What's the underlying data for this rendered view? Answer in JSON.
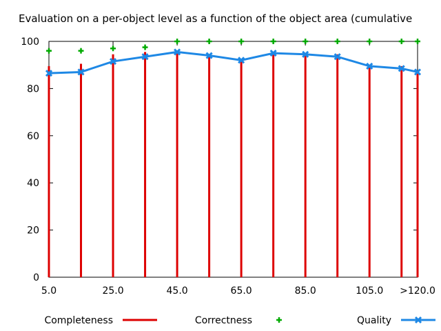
{
  "chart_data": {
    "type": "line",
    "title": "Evaluation on a per-object level as a function of the object area (cumulative",
    "x": [
      5,
      15,
      25,
      35,
      45,
      55,
      65,
      75,
      85,
      95,
      105,
      115,
      120
    ],
    "xticks": [
      {
        "value": 5,
        "label": "5.0"
      },
      {
        "value": 25,
        "label": "25.0"
      },
      {
        "value": 45,
        "label": "45.0"
      },
      {
        "value": 65,
        "label": "65.0"
      },
      {
        "value": 85,
        "label": "85.0"
      },
      {
        "value": 105,
        "label": "105.0"
      },
      {
        "value": 120,
        "label": ">120.0"
      }
    ],
    "yticks": [
      0,
      20,
      40,
      60,
      80,
      100
    ],
    "xlim": [
      5,
      120
    ],
    "ylim": [
      0,
      100
    ],
    "grid": false,
    "legend_position": "bottom",
    "series": [
      {
        "name": "Completeness",
        "style": "impulses",
        "color": "#dd0000",
        "values": [
          89.5,
          90.5,
          94.5,
          95.5,
          96,
          94.5,
          92.5,
          95.5,
          95,
          94.5,
          90,
          89.5,
          87.5
        ]
      },
      {
        "name": "Correctness",
        "style": "points",
        "color": "#00aa00",
        "values": [
          96,
          96,
          97,
          97.5,
          100,
          100,
          100,
          100,
          100,
          100,
          100,
          100,
          100
        ]
      },
      {
        "name": "Quality",
        "style": "linespoints",
        "color": "#1e88e5",
        "values": [
          86.5,
          87,
          91.5,
          93.5,
          95.5,
          94,
          92,
          95,
          94.5,
          93.5,
          89.5,
          88.5,
          87
        ]
      }
    ]
  }
}
